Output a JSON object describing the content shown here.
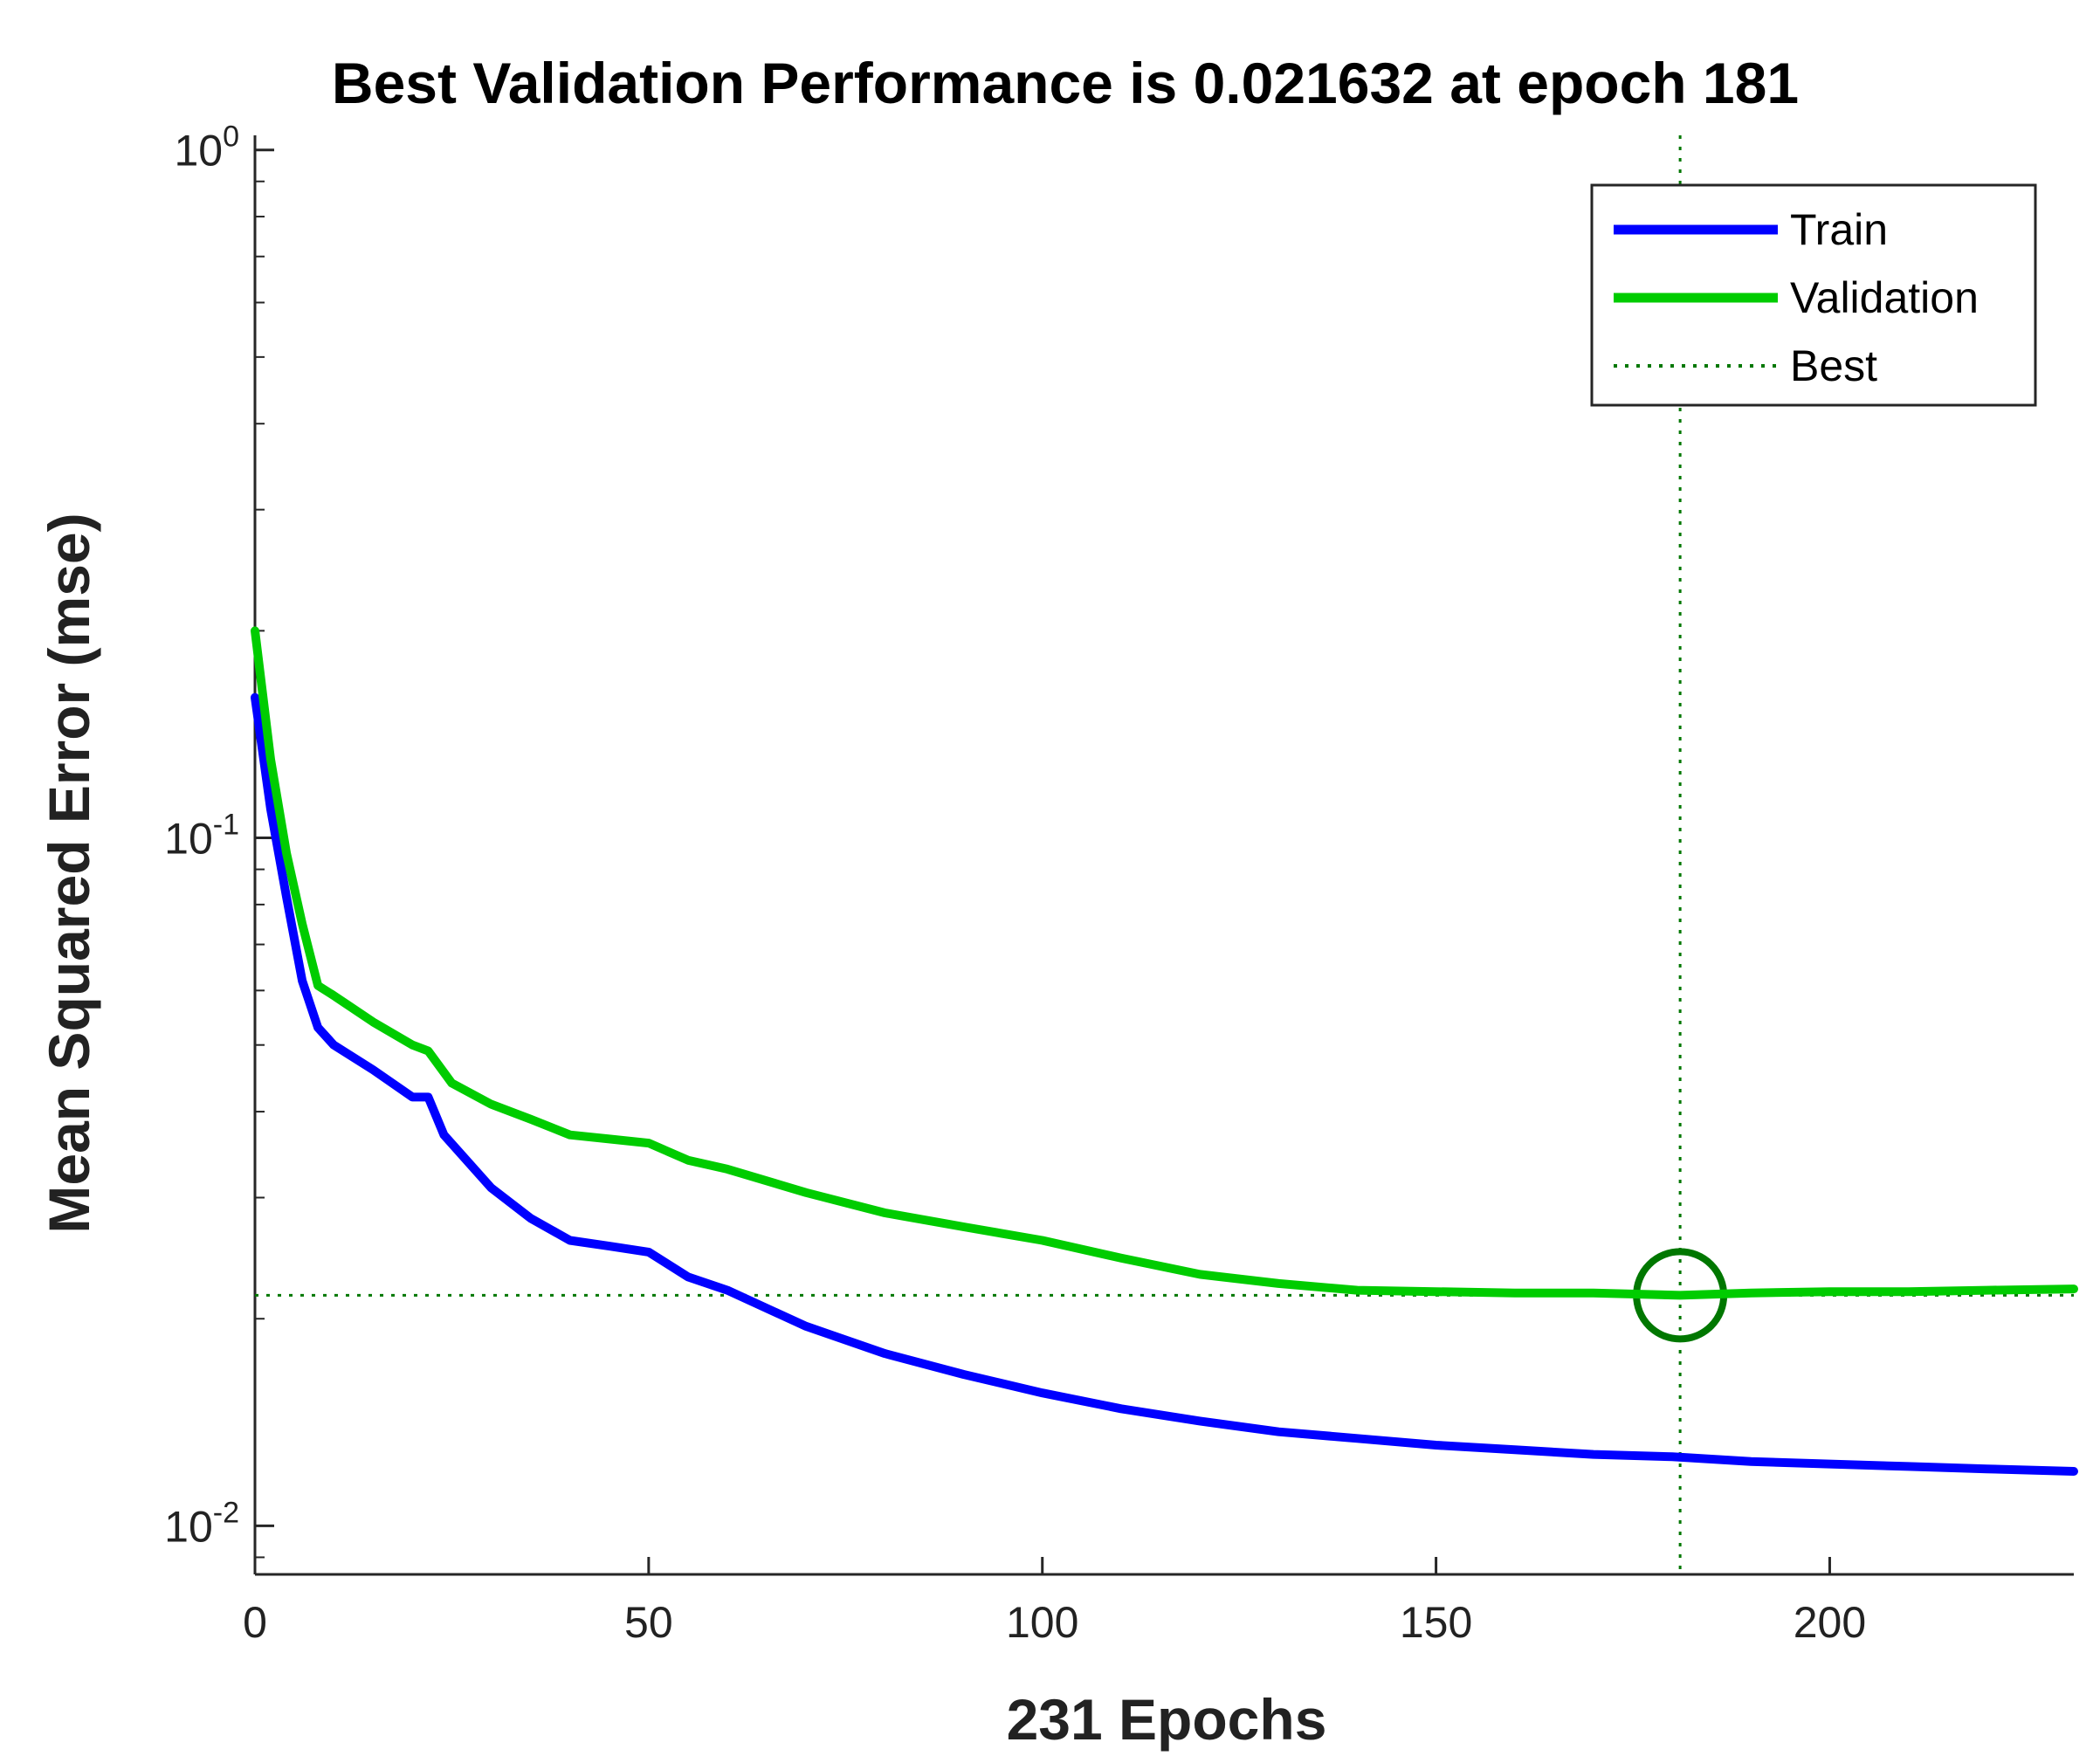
{
  "chart_data": {
    "type": "line",
    "title": "Best Validation Performance is 0.021632 at epoch 181",
    "xlabel": "231 Epochs",
    "ylabel": "Mean Squared Error  (mse)",
    "x_ticks": [
      "0",
      "50",
      "100",
      "150",
      "200"
    ],
    "y_ticks": [
      {
        "base": "10",
        "exp": "0"
      },
      {
        "base": "10",
        "exp": "-1"
      },
      {
        "base": "10",
        "exp": "-2"
      }
    ],
    "xlim": [
      0,
      231
    ],
    "ylim": [
      0.0085,
      1.05
    ],
    "y_scale": "log",
    "grid": false,
    "legend_position": "top-right",
    "legend": [
      "Train",
      "Validation",
      "Best"
    ],
    "best": {
      "epoch": 181,
      "value": 0.021632
    },
    "colors": {
      "train": "#0000ff",
      "validation": "#00cc00",
      "best": "#007700",
      "axis": "#262626"
    },
    "series": [
      {
        "name": "Train",
        "x": [
          0,
          2,
          4,
          6,
          8,
          10,
          15,
          20,
          22,
          24,
          30,
          35,
          40,
          45,
          50,
          55,
          60,
          70,
          80,
          90,
          100,
          110,
          120,
          130,
          140,
          150,
          160,
          170,
          180,
          190,
          200,
          210,
          220,
          231
        ],
        "y": [
          0.16,
          0.11,
          0.082,
          0.062,
          0.053,
          0.05,
          0.046,
          0.042,
          0.042,
          0.037,
          0.031,
          0.028,
          0.026,
          0.0255,
          0.025,
          0.023,
          0.022,
          0.0195,
          0.0178,
          0.0166,
          0.0156,
          0.0148,
          0.0142,
          0.0137,
          0.0134,
          0.0131,
          0.0129,
          0.0127,
          0.0126,
          0.0124,
          0.0123,
          0.0122,
          0.0121,
          0.012
        ]
      },
      {
        "name": "Validation",
        "x": [
          0,
          2,
          4,
          6,
          8,
          10,
          15,
          20,
          22,
          25,
          30,
          35,
          40,
          45,
          50,
          55,
          60,
          70,
          80,
          90,
          100,
          110,
          120,
          130,
          140,
          150,
          160,
          170,
          181,
          190,
          200,
          210,
          220,
          231
        ],
        "y": [
          0.2,
          0.13,
          0.095,
          0.075,
          0.061,
          0.059,
          0.054,
          0.05,
          0.049,
          0.044,
          0.041,
          0.039,
          0.037,
          0.0365,
          0.036,
          0.034,
          0.033,
          0.0305,
          0.0285,
          0.0272,
          0.026,
          0.0245,
          0.0232,
          0.0225,
          0.022,
          0.0219,
          0.0218,
          0.0218,
          0.021632,
          0.0218,
          0.0219,
          0.0219,
          0.022,
          0.0221
        ]
      }
    ]
  }
}
